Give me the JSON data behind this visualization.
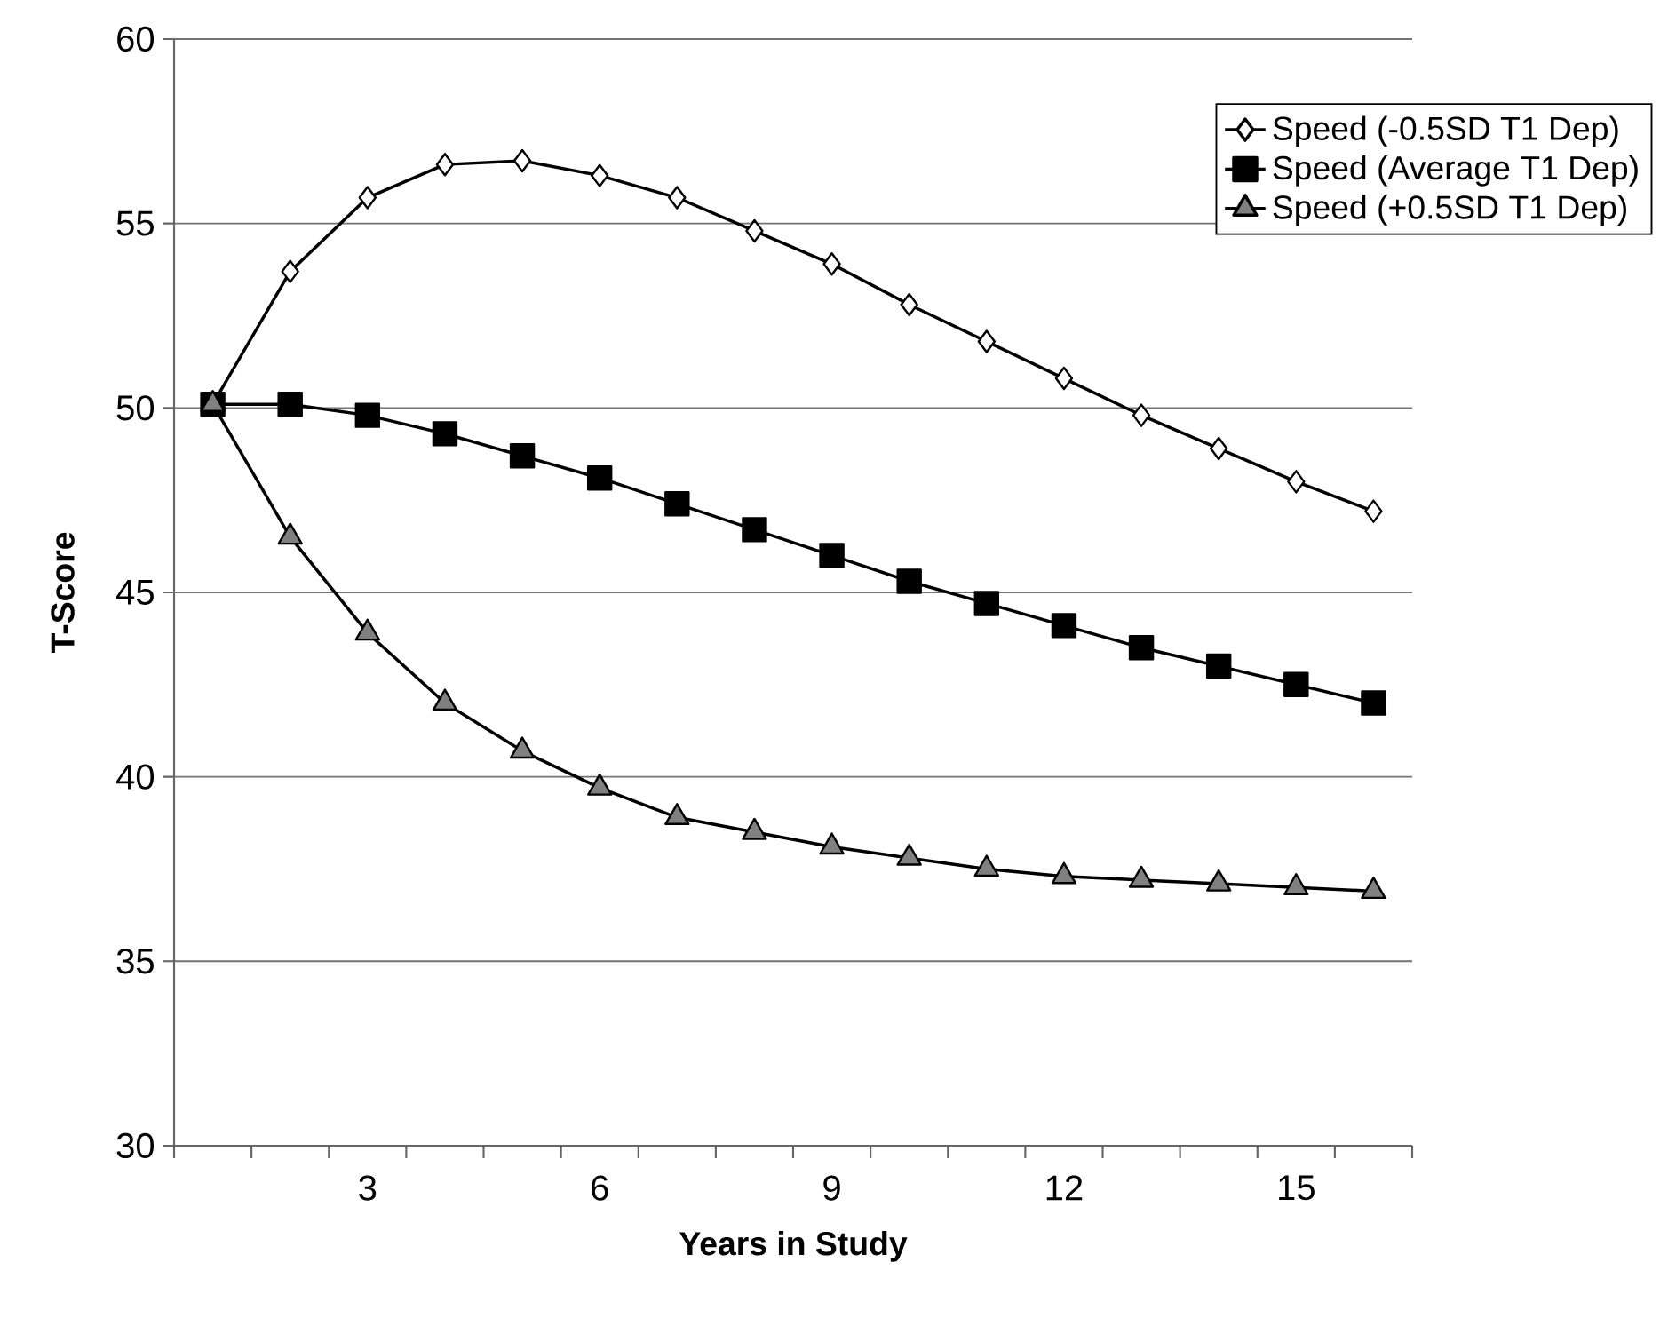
{
  "chart_data": {
    "type": "line",
    "xlabel": "Years in Study",
    "ylabel": "T-Score",
    "categories": [
      null,
      null,
      "3",
      null,
      null,
      "6",
      null,
      null,
      "9",
      null,
      null,
      "12",
      null,
      null,
      "15",
      null
    ],
    "ylim": [
      30,
      60
    ],
    "yticks": [
      30,
      35,
      40,
      45,
      50,
      55,
      60
    ],
    "grid": "y",
    "legend": "top right",
    "series": [
      {
        "name": "Speed (-0.5SD T1 Dep)",
        "color": "#000000",
        "colors": [
          "#ffffff",
          "#ffffff",
          "#ffffff",
          "#ffffff",
          "#ffffff",
          "#ffffff",
          "#ffffff",
          "#ffffff",
          "#ffffff",
          "#ffffff",
          "#ffffff",
          "#ffffff",
          "#ffffff",
          "#ffffff",
          "#ffffff",
          "#ffffff"
        ],
        "marker": "diamond",
        "values": [
          50.1,
          53.7,
          55.7,
          56.6,
          56.7,
          56.3,
          55.7,
          54.8,
          53.9,
          52.8,
          51.8,
          50.8,
          49.8,
          48.9,
          48.0,
          47.2
        ]
      },
      {
        "name": "Speed (Average T1 Dep)",
        "color": "#000000",
        "marker": "square",
        "values": [
          50.1,
          50.1,
          49.8,
          49.3,
          48.7,
          48.1,
          47.4,
          46.7,
          46.0,
          45.3,
          44.7,
          44.1,
          43.5,
          43.0,
          42.5,
          42.0
        ]
      },
      {
        "name": "Speed (+0.5SD T1 Dep)",
        "color": "#000000",
        "colors": [
          "#808080",
          "#808080",
          "#808080",
          "#808080",
          "#808080",
          "#808080",
          "#808080",
          "#808080",
          "#808080",
          "#808080",
          "#808080",
          "#808080",
          "#808080",
          "#808080",
          "#808080",
          "#808080"
        ],
        "marker": "triangle",
        "values": [
          50.1,
          46.5,
          43.9,
          42.0,
          40.7,
          39.7,
          38.9,
          38.5,
          38.1,
          37.8,
          37.5,
          37.3,
          37.2,
          37.1,
          37.0,
          36.9
        ]
      }
    ]
  }
}
